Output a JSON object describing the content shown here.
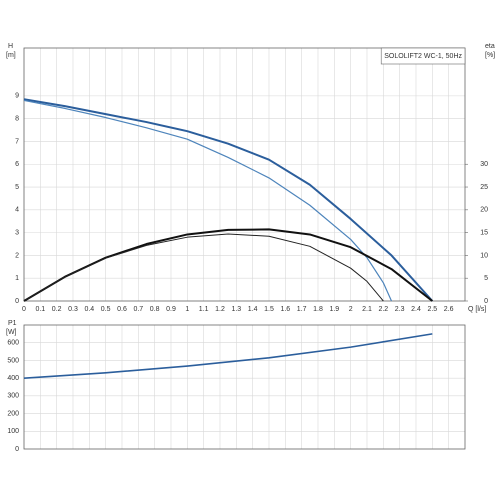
{
  "chart_data": [
    {
      "type": "line",
      "title": "SOLOLIFT2 WC-1, 50Hz",
      "ylabel": "H",
      "yunit": "[m]",
      "y2label": "eta",
      "y2unit": "[%]",
      "xlabel": "Q [l/s]",
      "xlim": [
        0,
        2.7
      ],
      "xticks": [
        0,
        0.1,
        0.2,
        0.3,
        0.4,
        0.5,
        0.6,
        0.7,
        0.8,
        0.9,
        1,
        1.1,
        1.2,
        1.3,
        1.4,
        1.5,
        1.6,
        1.7,
        1.8,
        1.9,
        2,
        2.1,
        2.2,
        2.3,
        2.4,
        2.5,
        2.6
      ],
      "ylim": [
        0,
        11.1
      ],
      "yticks": [
        0,
        1,
        2,
        3,
        4,
        5,
        6,
        7,
        8,
        9
      ],
      "y2lim": [
        0,
        55.5
      ],
      "y2ticks": [
        0,
        5,
        10,
        15,
        20,
        25,
        30
      ],
      "grid": true,
      "series": [
        {
          "color": "#2b5e9c",
          "width": 2,
          "x": [
            0,
            0.25,
            0.5,
            0.75,
            1,
            1.25,
            1.5,
            1.75,
            2,
            2.25,
            2.5
          ],
          "values": [
            8.85,
            8.55,
            8.2,
            7.85,
            7.45,
            6.9,
            6.2,
            5.1,
            3.6,
            2.0,
            0
          ]
        },
        {
          "color": "#4d84bb",
          "width": 1.2,
          "x": [
            0,
            0.25,
            0.5,
            0.75,
            1,
            1.25,
            1.5,
            1.75,
            2,
            2.1,
            2.2,
            2.25
          ],
          "values": [
            8.8,
            8.45,
            8.05,
            7.6,
            7.1,
            6.3,
            5.4,
            4.2,
            2.7,
            1.9,
            0.8,
            0
          ]
        },
        {
          "color": "#111111",
          "width": 2,
          "axis": "y2",
          "x": [
            0,
            0.25,
            0.5,
            0.75,
            1,
            1.25,
            1.5,
            1.75,
            2,
            2.25,
            2.5
          ],
          "values": [
            0,
            5.3,
            9.5,
            12.5,
            14.6,
            15.6,
            15.7,
            14.6,
            11.8,
            7,
            0
          ]
        },
        {
          "color": "#222222",
          "width": 1,
          "axis": "y2",
          "x": [
            0,
            0.25,
            0.5,
            0.75,
            1,
            1.25,
            1.5,
            1.75,
            2,
            2.1,
            2.2
          ],
          "values": [
            0,
            5.3,
            9.4,
            12.2,
            14,
            14.7,
            14.2,
            12,
            7.2,
            4.3,
            0
          ]
        }
      ]
    },
    {
      "type": "line",
      "ylabel": "P1",
      "yunit": "[W]",
      "xlim": [
        0,
        2.7
      ],
      "xticks": [
        0,
        0.1,
        0.2,
        0.3,
        0.4,
        0.5,
        0.6,
        0.7,
        0.8,
        0.9,
        1,
        1.1,
        1.2,
        1.3,
        1.4,
        1.5,
        1.6,
        1.7,
        1.8,
        1.9,
        2,
        2.1,
        2.2,
        2.3,
        2.4,
        2.5,
        2.6
      ],
      "ylim": [
        0,
        700
      ],
      "yticks": [
        0,
        100,
        200,
        300,
        400,
        500,
        600
      ],
      "grid": true,
      "series": [
        {
          "color": "#2b5e9c",
          "width": 1.6,
          "x": [
            0,
            0.5,
            1,
            1.5,
            2,
            2.5
          ],
          "values": [
            400,
            430,
            468,
            515,
            575,
            650
          ]
        }
      ]
    }
  ]
}
